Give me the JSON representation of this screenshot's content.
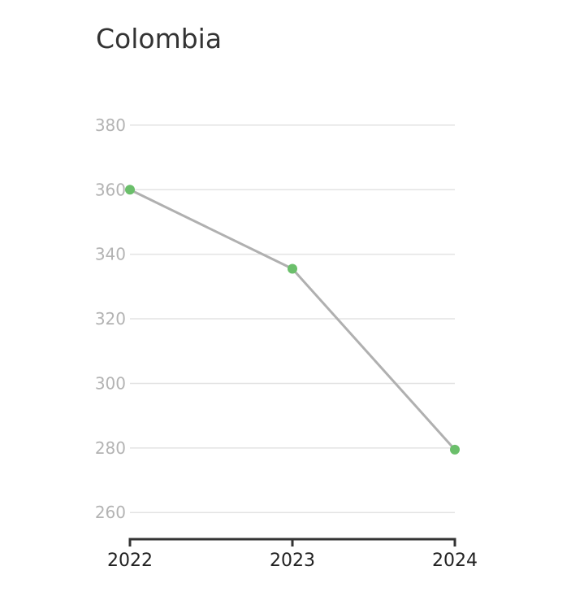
{
  "chart_data": {
    "type": "line",
    "title": "Colombia",
    "xlabel": "",
    "ylabel": "",
    "x": [
      "2022",
      "2023",
      "2024"
    ],
    "series": [
      {
        "values": [
          360,
          335.5,
          279.5
        ]
      }
    ],
    "yticks": [
      260,
      280,
      300,
      320,
      340,
      360,
      380
    ],
    "ylim": [
      252,
      384
    ],
    "grid": true,
    "colors": {
      "line": "#b0b0b0",
      "point": "#6bbf6b",
      "grid": "#e3e3e3",
      "axis": "#333333"
    }
  }
}
